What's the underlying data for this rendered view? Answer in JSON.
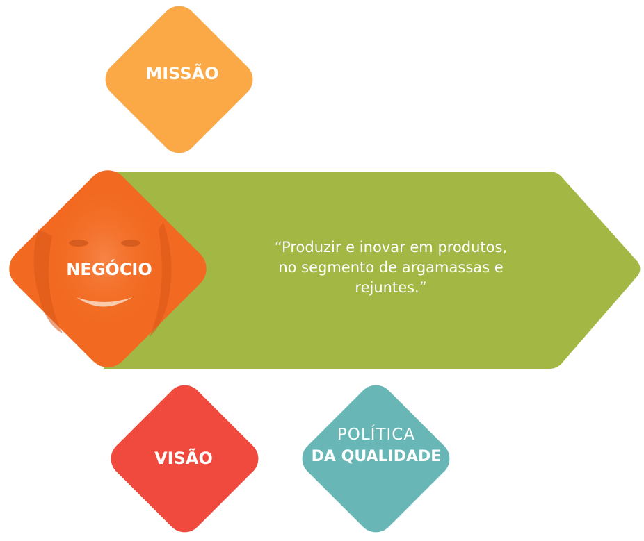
{
  "colors": {
    "missao": "#FBA847",
    "negocio": "#F26A21",
    "arrow": "#A3B844",
    "visao": "#F04A3E",
    "politica": "#68B7B6"
  },
  "missao": {
    "label": "MISSÃO"
  },
  "negocio": {
    "label": "NEGÓCIO",
    "quote_lines": [
      "“Produzir e inovar em produtos,",
      "no segmento de argamassas e",
      "rejuntes.”"
    ]
  },
  "visao": {
    "label": "VISÃO"
  },
  "politica": {
    "line1": "POLÍTICA",
    "line2": "DA QUALIDADE"
  }
}
